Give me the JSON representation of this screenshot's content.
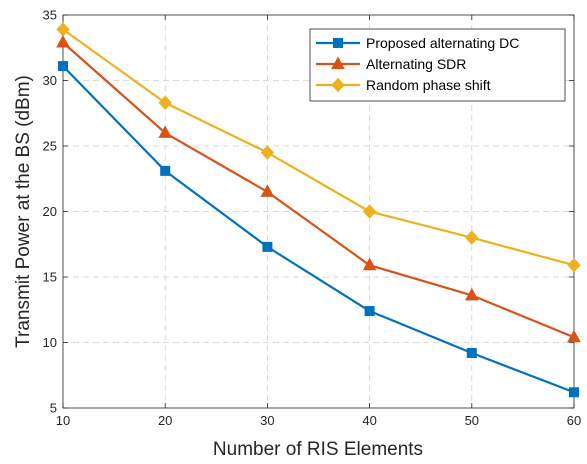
{
  "chart_data": {
    "type": "line",
    "xlabel": "Number of RIS Elements",
    "ylabel": "Transmit Power at the BS (dBm)",
    "x": [
      10,
      20,
      30,
      40,
      50,
      60
    ],
    "xlim": [
      10,
      60
    ],
    "ylim": [
      5,
      35
    ],
    "xticks": [
      "10",
      "20",
      "30",
      "40",
      "50",
      "60"
    ],
    "yticks": [
      "5",
      "10",
      "15",
      "20",
      "25",
      "30",
      "35"
    ],
    "grid": true,
    "legend_position": "top-right",
    "series": [
      {
        "name": "Proposed alternating DC",
        "values": [
          31.1,
          23.1,
          17.3,
          12.4,
          9.2,
          6.2
        ],
        "color": "#0072BD",
        "marker": "square"
      },
      {
        "name": "Alternating SDR",
        "values": [
          32.9,
          26.0,
          21.5,
          15.9,
          13.6,
          10.4
        ],
        "color": "#D95319",
        "marker": "triangle"
      },
      {
        "name": "Random phase shift",
        "values": [
          33.9,
          28.3,
          24.5,
          20.0,
          18.0,
          15.9
        ],
        "color": "#EDB120",
        "marker": "diamond"
      }
    ]
  }
}
